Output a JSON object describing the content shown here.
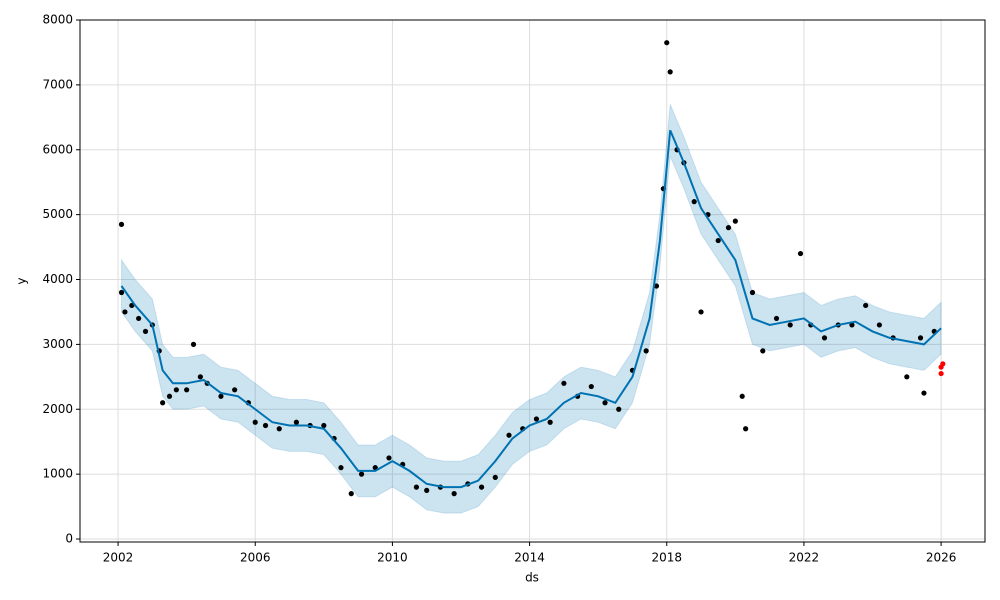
{
  "chart_data": {
    "type": "line",
    "x_label": "ds",
    "y_label": "y",
    "xlim": [
      2000.89,
      2027.28
    ],
    "ylim": [
      -46,
      8000
    ],
    "xticks": [
      2002,
      2006,
      2010,
      2014,
      2018,
      2022,
      2026
    ],
    "yticks": [
      0,
      1000,
      2000,
      3000,
      4000,
      5000,
      6000,
      7000,
      8000
    ],
    "grid": true,
    "series": [
      {
        "type": "band",
        "color": "#0072b2",
        "x": [
          2002.1,
          2002.5,
          2003.0,
          2003.3,
          2003.6,
          2004.0,
          2004.5,
          2005.0,
          2005.5,
          2006.0,
          2006.5,
          2007.0,
          2007.5,
          2008.0,
          2008.5,
          2009.0,
          2009.5,
          2010.0,
          2010.5,
          2011.0,
          2011.5,
          2012.0,
          2012.5,
          2013.0,
          2013.5,
          2014.0,
          2014.5,
          2015.0,
          2015.5,
          2016.0,
          2016.5,
          2017.0,
          2017.5,
          2017.8,
          2018.1,
          2018.5,
          2019.0,
          2019.5,
          2020.0,
          2020.5,
          2021.0,
          2021.5,
          2022.0,
          2022.5,
          2023.0,
          2023.5,
          2024.0,
          2024.5,
          2025.0,
          2025.5,
          2026.0
        ],
        "lower": [
          3500,
          3200,
          2900,
          2200,
          2000,
          2000,
          2050,
          1850,
          1800,
          1600,
          1400,
          1350,
          1350,
          1300,
          1000,
          650,
          650,
          800,
          650,
          450,
          400,
          400,
          500,
          800,
          1150,
          1350,
          1450,
          1700,
          1850,
          1800,
          1700,
          2100,
          3000,
          4200,
          5900,
          5400,
          4700,
          4300,
          3900,
          3000,
          2900,
          2950,
          3000,
          2800,
          2900,
          2950,
          2800,
          2700,
          2650,
          2600,
          2850
        ],
        "upper": [
          4300,
          4000,
          3700,
          3000,
          2800,
          2800,
          2850,
          2650,
          2600,
          2400,
          2200,
          2150,
          2150,
          2100,
          1800,
          1450,
          1450,
          1600,
          1450,
          1250,
          1200,
          1200,
          1300,
          1600,
          1950,
          2150,
          2250,
          2500,
          2650,
          2600,
          2500,
          2900,
          3800,
          5000,
          6700,
          6200,
          5500,
          5100,
          4700,
          3800,
          3700,
          3750,
          3800,
          3600,
          3700,
          3750,
          3600,
          3500,
          3450,
          3400,
          3650
        ]
      },
      {
        "type": "scatter",
        "color": "#000000",
        "x": [
          2002.1,
          2002.1,
          2002.2,
          2002.4,
          2002.6,
          2002.8,
          2003.0,
          2003.2,
          2003.3,
          2003.5,
          2003.7,
          2004.0,
          2004.2,
          2004.4,
          2004.6,
          2005.0,
          2005.4,
          2005.8,
          2006.0,
          2006.3,
          2006.7,
          2007.2,
          2007.6,
          2008.0,
          2008.3,
          2008.5,
          2008.8,
          2009.1,
          2009.5,
          2009.9,
          2010.3,
          2010.7,
          2011.0,
          2011.4,
          2011.8,
          2012.2,
          2012.6,
          2013.0,
          2013.4,
          2013.8,
          2014.2,
          2014.6,
          2015.0,
          2015.4,
          2015.8,
          2016.2,
          2016.6,
          2017.0,
          2017.4,
          2017.7,
          2017.9,
          2018.0,
          2018.1,
          2018.3,
          2018.5,
          2018.8,
          2019.0,
          2019.2,
          2019.5,
          2019.8,
          2020.0,
          2020.2,
          2020.3,
          2020.5,
          2020.8,
          2021.2,
          2021.6,
          2021.9,
          2022.2,
          2022.6,
          2023.0,
          2023.4,
          2023.8,
          2024.2,
          2024.6,
          2025.0,
          2025.4,
          2025.5,
          2025.8
        ],
        "values": [
          4850,
          3800,
          3500,
          3600,
          3400,
          3200,
          3300,
          2900,
          2100,
          2200,
          2300,
          2300,
          3000,
          2500,
          2400,
          2200,
          2300,
          2100,
          1800,
          1750,
          1700,
          1800,
          1750,
          1750,
          1550,
          1100,
          700,
          1000,
          1100,
          1250,
          1150,
          800,
          750,
          800,
          700,
          850,
          800,
          950,
          1600,
          1700,
          1850,
          1800,
          2400,
          2200,
          2350,
          2100,
          2000,
          2600,
          2900,
          3900,
          5400,
          7650,
          7200,
          6000,
          5800,
          5200,
          3500,
          5000,
          4600,
          4800,
          4900,
          2200,
          1700,
          3800,
          2900,
          3400,
          3300,
          4400,
          3300,
          3100,
          3300,
          3300,
          3600,
          3300,
          3100,
          2500,
          3100,
          2250,
          3200
        ]
      },
      {
        "type": "line",
        "color": "#0072b2",
        "x": [
          2002.1,
          2002.5,
          2003.0,
          2003.3,
          2003.6,
          2004.0,
          2004.5,
          2005.0,
          2005.5,
          2006.0,
          2006.5,
          2007.0,
          2007.5,
          2008.0,
          2008.5,
          2009.0,
          2009.5,
          2010.0,
          2010.5,
          2011.0,
          2011.5,
          2012.0,
          2012.5,
          2013.0,
          2013.5,
          2014.0,
          2014.5,
          2015.0,
          2015.5,
          2016.0,
          2016.5,
          2017.0,
          2017.5,
          2017.8,
          2018.1,
          2018.5,
          2019.0,
          2019.5,
          2020.0,
          2020.5,
          2021.0,
          2021.5,
          2022.0,
          2022.5,
          2023.0,
          2023.5,
          2024.0,
          2024.5,
          2025.0,
          2025.5,
          2026.0
        ],
        "values": [
          3900,
          3600,
          3300,
          2600,
          2400,
          2400,
          2450,
          2250,
          2200,
          2000,
          1800,
          1750,
          1750,
          1700,
          1400,
          1050,
          1050,
          1200,
          1050,
          850,
          800,
          800,
          900,
          1200,
          1550,
          1750,
          1850,
          2100,
          2250,
          2200,
          2100,
          2500,
          3400,
          4600,
          6300,
          5800,
          5100,
          4700,
          4300,
          3400,
          3300,
          3350,
          3400,
          3200,
          3300,
          3350,
          3200,
          3100,
          3050,
          3000,
          3250
        ]
      },
      {
        "type": "scatter",
        "color": "#ff0000",
        "x": [
          2026.0,
          2026.0,
          2026.05
        ],
        "values": [
          2550,
          2650,
          2700
        ]
      }
    ]
  }
}
